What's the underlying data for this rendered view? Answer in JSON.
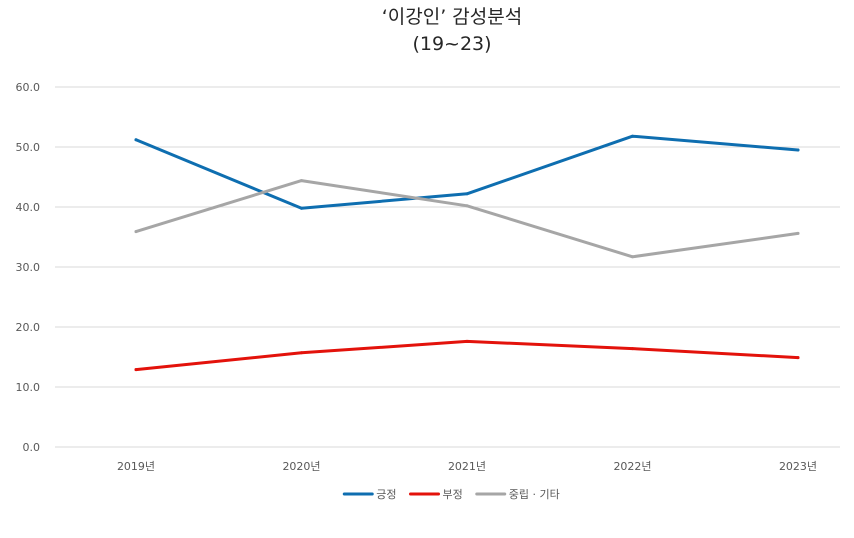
{
  "chart_data": {
    "type": "line",
    "title": "‘이강인’ 감성분석",
    "subtitle": "(19~23)",
    "categories": [
      "2019년",
      "2020년",
      "2021년",
      "2022년",
      "2023년"
    ],
    "ylim": [
      0,
      60
    ],
    "yticks": [
      "0.0",
      "10.0",
      "20.0",
      "30.0",
      "40.0",
      "50.0",
      "60.0"
    ],
    "grid": true,
    "legend_position": "bottom",
    "series": [
      {
        "name": "긍정",
        "color": "#0E6EB0",
        "values": [
          51.2,
          39.8,
          42.2,
          51.8,
          49.5
        ]
      },
      {
        "name": "부정",
        "color": "#E3120B",
        "values": [
          12.9,
          15.7,
          17.6,
          16.4,
          14.9
        ]
      },
      {
        "name": "중립 · 기타",
        "color": "#A6A6A6",
        "values": [
          35.9,
          44.4,
          40.2,
          31.7,
          35.6
        ]
      }
    ]
  }
}
